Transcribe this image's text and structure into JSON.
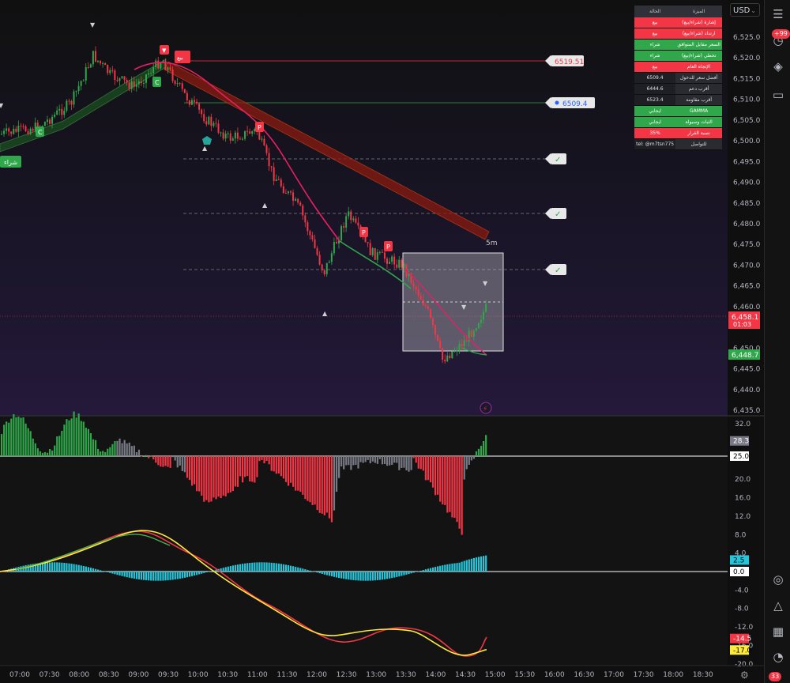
{
  "currency": {
    "label": "USD"
  },
  "alerts": {
    "count": "+99"
  },
  "notifications": {
    "count": "33"
  },
  "info_table": {
    "header": {
      "col1": "الميزة",
      "col2": "الحالة"
    },
    "rows": [
      {
        "label": "إشارة (شراء/بيع)",
        "value": "بيع",
        "color": "red"
      },
      {
        "label": "ارتداد (شراء/بيع)",
        "value": "بيع",
        "color": "red"
      },
      {
        "label": "السعر مقابل المتوافق",
        "value": "شراء",
        "color": "green"
      },
      {
        "label": "تحطي (شراء/بيع)",
        "value": "شراء",
        "color": "green"
      },
      {
        "label": "الإتجاه العام",
        "value": "بيع",
        "color": "red"
      },
      {
        "label": "أفضل سعر للدخول",
        "value": "6509.4",
        "color": "dark"
      },
      {
        "label": "أقرب دعم",
        "value": "6444.6",
        "color": "dark"
      },
      {
        "label": "أقرب مقاومة",
        "value": "6523.4",
        "color": "dark"
      },
      {
        "label": "GAMMA",
        "value": "ايجابي",
        "color": "green"
      },
      {
        "label": "الثبات وسيولة",
        "value": "ايجابي",
        "color": "green"
      },
      {
        "label": "نسبة القرار",
        "value": "35%",
        "color": "red"
      },
      {
        "label": "للتواصل",
        "value": "tel: @m7tsn775",
        "color": "dark"
      }
    ]
  },
  "price_levels": {
    "resistance": "6519.51",
    "entry": "6509.4"
  },
  "price_tags": {
    "current_price": "6,458.1",
    "countdown": "01:03",
    "green_level": "6,448.7"
  },
  "timeframe_label": "5m",
  "signal_labels": {
    "buy": "شراء",
    "sell": "بيع",
    "p": "P",
    "c": "C"
  },
  "price_axis": {
    "ticks": [
      {
        "label": "6,525.0",
        "value": 6525
      },
      {
        "label": "6,520.0",
        "value": 6520
      },
      {
        "label": "6,515.0",
        "value": 6515
      },
      {
        "label": "6,510.0",
        "value": 6510
      },
      {
        "label": "6,505.0",
        "value": 6505
      },
      {
        "label": "6,500.0",
        "value": 6500
      },
      {
        "label": "6,495.0",
        "value": 6495
      },
      {
        "label": "6,490.0",
        "value": 6490
      },
      {
        "label": "6,485.0",
        "value": 6485
      },
      {
        "label": "6,480.0",
        "value": 6480
      },
      {
        "label": "6,475.0",
        "value": 6475
      },
      {
        "label": "6,470.0",
        "value": 6470
      },
      {
        "label": "6,465.0",
        "value": 6465
      },
      {
        "label": "6,460.0",
        "value": 6460
      },
      {
        "label": "6,450.0",
        "value": 6450
      },
      {
        "label": "6,445.0",
        "value": 6445
      },
      {
        "label": "6,440.0",
        "value": 6440
      },
      {
        "label": "6,435.0",
        "value": 6435
      }
    ]
  },
  "osc_axis": {
    "ticks": [
      {
        "label": "32.0",
        "value": 32
      },
      {
        "label": "20.0",
        "value": 20
      },
      {
        "label": "16.0",
        "value": 16
      },
      {
        "label": "12.0",
        "value": 12
      },
      {
        "label": "8.0",
        "value": 8
      },
      {
        "label": "4.0",
        "value": 4
      },
      {
        "label": "0.0",
        "value": 0
      },
      {
        "label": "-4.0",
        "value": -4
      },
      {
        "label": "-8.0",
        "value": -8
      },
      {
        "label": "-12.0",
        "value": -12
      },
      {
        "label": "-16.0",
        "value": -16
      },
      {
        "label": "-20.0",
        "value": -20
      }
    ],
    "tags": [
      {
        "label": "28.3",
        "value": 28.3,
        "color": "#787b86",
        "text": "#ffffff"
      },
      {
        "label": "25.0",
        "value": 25.0,
        "color": "#ffffff",
        "text": "#000000"
      },
      {
        "label": "2.5",
        "value": 2.5,
        "color": "#26c6da",
        "text": "#000000"
      },
      {
        "label": "0.0",
        "value": 0.0,
        "color": "#ffffff",
        "text": "#000000"
      },
      {
        "label": "-14.5",
        "value": -14.5,
        "color": "#f23645",
        "text": "#ffffff"
      },
      {
        "label": "-17.0",
        "value": -17.0,
        "color": "#ffeb3b",
        "text": "#000000"
      }
    ]
  },
  "time_axis": {
    "ticks": [
      "07:00",
      "07:30",
      "08:00",
      "08:30",
      "09:00",
      "09:30",
      "10:00",
      "10:30",
      "11:00",
      "11:30",
      "12:00",
      "12:30",
      "13:00",
      "13:30",
      "14:00",
      "14:30",
      "15:00",
      "15:30",
      "16:00",
      "16:30",
      "17:00",
      "17:30",
      "18:00",
      "18:30"
    ]
  },
  "chart_data": {
    "type": "candlestick",
    "series": [
      {
        "name": "price",
        "points": [
          [
            "07:00",
            6503
          ],
          [
            "07:30",
            6508
          ],
          [
            "08:00",
            6514
          ],
          [
            "08:30",
            6516
          ],
          [
            "09:00",
            6513
          ],
          [
            "09:15",
            6520
          ],
          [
            "09:30",
            6512
          ],
          [
            "10:00",
            6505
          ],
          [
            "10:30",
            6499
          ],
          [
            "11:00",
            6495
          ],
          [
            "11:30",
            6485
          ],
          [
            "12:00",
            6471
          ],
          [
            "12:30",
            6482
          ],
          [
            "13:00",
            6474
          ],
          [
            "13:30",
            6469
          ],
          [
            "14:00",
            6449
          ],
          [
            "14:30",
            6455
          ],
          [
            "14:45",
            6460
          ]
        ]
      }
    ],
    "oscillator": {
      "upper_histogram_range": [
        -16,
        32
      ],
      "upper_threshold": 25,
      "lower_lines": [
        "green",
        "yellow",
        "red"
      ]
    }
  },
  "colors": {
    "bull": "#2fa74a",
    "bear": "#f23645",
    "neutral": "#787b86",
    "cyan": "#26c6da",
    "yellow": "#ffeb3b"
  }
}
